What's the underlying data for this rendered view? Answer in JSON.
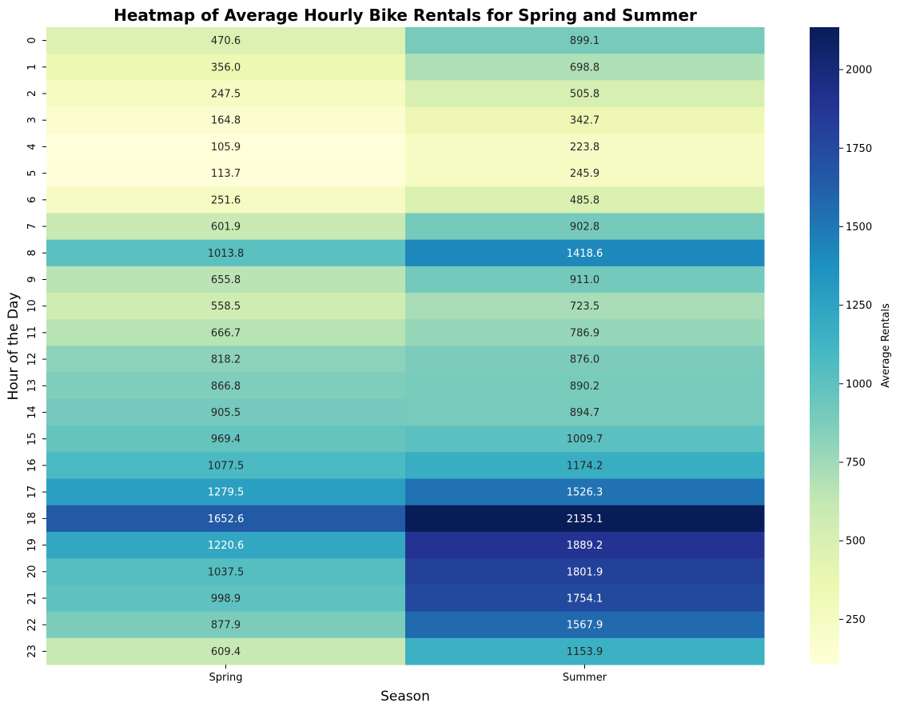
{
  "chart_data": {
    "type": "heatmap",
    "title": "Heatmap of Average Hourly Bike Rentals for Spring and Summer",
    "xlabel": "Season",
    "ylabel": "Hour of the Day",
    "x_categories": [
      "Spring",
      "Summer"
    ],
    "y_categories": [
      "0",
      "1",
      "2",
      "3",
      "4",
      "5",
      "6",
      "7",
      "8",
      "9",
      "10",
      "11",
      "12",
      "13",
      "14",
      "15",
      "16",
      "17",
      "18",
      "19",
      "20",
      "21",
      "22",
      "23"
    ],
    "values": [
      [
        470.6,
        899.1
      ],
      [
        356.0,
        698.8
      ],
      [
        247.5,
        505.8
      ],
      [
        164.8,
        342.7
      ],
      [
        105.9,
        223.8
      ],
      [
        113.7,
        245.9
      ],
      [
        251.6,
        485.8
      ],
      [
        601.9,
        902.8
      ],
      [
        1013.8,
        1418.6
      ],
      [
        655.8,
        911.0
      ],
      [
        558.5,
        723.5
      ],
      [
        666.7,
        786.9
      ],
      [
        818.2,
        876.0
      ],
      [
        866.8,
        890.2
      ],
      [
        905.5,
        894.7
      ],
      [
        969.4,
        1009.7
      ],
      [
        1077.5,
        1174.2
      ],
      [
        1279.5,
        1526.3
      ],
      [
        1652.6,
        2135.1
      ],
      [
        1220.6,
        1889.2
      ],
      [
        1037.5,
        1801.9
      ],
      [
        998.9,
        1754.1
      ],
      [
        877.9,
        1567.9
      ],
      [
        609.4,
        1153.9
      ]
    ],
    "value_format": "0.1f",
    "colorbar": {
      "label": "Average Rentals",
      "colormap": "YlGnBu",
      "vmin": 105.9,
      "vmax": 2135.1,
      "ticks": [
        250,
        500,
        750,
        1000,
        1250,
        1500,
        1750,
        2000
      ]
    },
    "colormap_stops": [
      "#ffffd9",
      "#edf8b1",
      "#c7e9b4",
      "#7fcdbb",
      "#41b6c4",
      "#1d91c0",
      "#225ea8",
      "#253494",
      "#081d58"
    ]
  }
}
